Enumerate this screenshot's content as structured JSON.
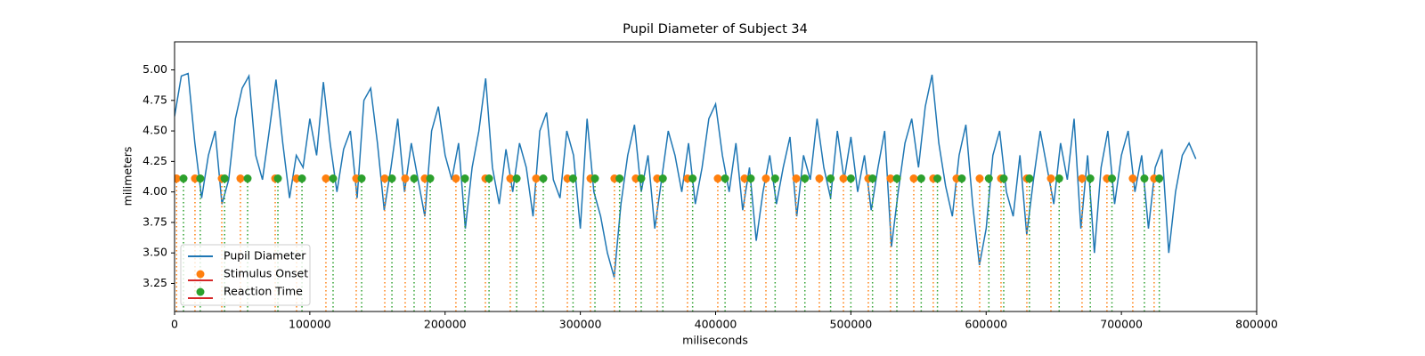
{
  "chart_data": {
    "type": "line",
    "title": "Pupil Diameter of Subject 34",
    "x_label": "miliseconds",
    "y_label": "milimeters",
    "xlim": [
      0,
      800000
    ],
    "ylim": [
      3.02,
      5.23
    ],
    "xticks": [
      0,
      100000,
      200000,
      300000,
      400000,
      500000,
      600000,
      700000,
      800000
    ],
    "yticks": [
      3.25,
      {
        "value": 3.5,
        "label": "3.50"
      },
      3.75,
      {
        "value": 4,
        "label": "4.00"
      },
      4.25,
      {
        "value": 4.5,
        "label": "4.50"
      },
      4.75,
      {
        "value": 5,
        "label": "5.00"
      }
    ],
    "legend": "lower left",
    "baseline_color": "#d62728",
    "series": [
      {
        "name": "Pupil Diameter",
        "style": "line",
        "color": "#1f77b4",
        "x": [
          0,
          5000,
          10000,
          15000,
          20000,
          25000,
          30000,
          35000,
          40000,
          45000,
          50000,
          55000,
          60000,
          65000,
          70000,
          75000,
          80000,
          85000,
          90000,
          95000,
          100000,
          105000,
          110000,
          115000,
          120000,
          125000,
          130000,
          135000,
          140000,
          145000,
          150000,
          155000,
          160000,
          165000,
          170000,
          175000,
          180000,
          185000,
          190000,
          195000,
          200000,
          205000,
          210000,
          215000,
          220000,
          225000,
          230000,
          235000,
          240000,
          245000,
          250000,
          255000,
          260000,
          265000,
          270000,
          275000,
          280000,
          285000,
          290000,
          295000,
          300000,
          305000,
          310000,
          315000,
          320000,
          325000,
          330000,
          335000,
          340000,
          345000,
          350000,
          355000,
          360000,
          365000,
          370000,
          375000,
          380000,
          385000,
          390000,
          395000,
          400000,
          405000,
          410000,
          415000,
          420000,
          425000,
          430000,
          435000,
          440000,
          445000,
          450000,
          455000,
          460000,
          465000,
          470000,
          475000,
          480000,
          485000,
          490000,
          495000,
          500000,
          505000,
          510000,
          515000,
          520000,
          525000,
          530000,
          535000,
          540000,
          545000,
          550000,
          555000,
          560000,
          565000,
          570000,
          575000,
          580000,
          585000,
          590000,
          595000,
          600000,
          605000,
          610000,
          615000,
          620000,
          625000,
          630000,
          635000,
          640000,
          645000,
          650000,
          655000,
          660000,
          665000,
          670000,
          675000,
          680000,
          685000,
          690000,
          695000,
          700000,
          705000,
          710000,
          715000,
          720000,
          725000,
          730000,
          735000,
          740000,
          745000,
          750000,
          755000
        ],
        "values": [
          4.62,
          4.95,
          4.97,
          4.4,
          3.95,
          4.3,
          4.5,
          3.9,
          4.1,
          4.6,
          4.85,
          4.95,
          4.3,
          4.1,
          4.5,
          4.92,
          4.4,
          3.95,
          4.3,
          4.2,
          4.6,
          4.3,
          4.9,
          4.4,
          4.0,
          4.35,
          4.5,
          3.95,
          4.75,
          4.85,
          4.4,
          3.85,
          4.2,
          4.6,
          4.0,
          4.4,
          4.1,
          3.8,
          4.5,
          4.7,
          4.3,
          4.1,
          4.4,
          3.7,
          4.2,
          4.5,
          4.93,
          4.2,
          3.9,
          4.35,
          4.0,
          4.4,
          4.2,
          3.8,
          4.5,
          4.65,
          4.1,
          3.95,
          4.5,
          4.3,
          3.7,
          4.6,
          4.0,
          3.8,
          3.5,
          3.3,
          3.9,
          4.3,
          4.55,
          4.0,
          4.3,
          3.7,
          4.1,
          4.5,
          4.3,
          4.0,
          4.4,
          3.9,
          4.2,
          4.6,
          4.72,
          4.3,
          4.0,
          4.4,
          3.85,
          4.2,
          3.6,
          4.0,
          4.3,
          3.9,
          4.2,
          4.45,
          3.8,
          4.3,
          4.1,
          4.6,
          4.2,
          3.95,
          4.5,
          4.1,
          4.45,
          4.0,
          4.3,
          3.85,
          4.2,
          4.5,
          3.55,
          4.0,
          4.4,
          4.6,
          4.2,
          4.7,
          4.96,
          4.4,
          4.05,
          3.8,
          4.3,
          4.55,
          3.9,
          3.4,
          3.7,
          4.3,
          4.5,
          4.0,
          3.8,
          4.3,
          3.65,
          4.1,
          4.5,
          4.2,
          3.9,
          4.4,
          4.1,
          4.6,
          3.7,
          4.3,
          3.5,
          4.2,
          4.5,
          3.9,
          4.3,
          4.5,
          4.0,
          4.3,
          3.7,
          4.2,
          4.35,
          3.5,
          4.0,
          4.3,
          4.4,
          4.27
        ]
      },
      {
        "name": "Stimulus Onset",
        "style": "stem",
        "color": "#ff7f0e",
        "x": [
          1500,
          15100,
          34900,
          48700,
          74400,
          90200,
          111900,
          134300,
          155400,
          170500,
          185000,
          208000,
          229800,
          248200,
          267300,
          290400,
          307500,
          325200,
          341000,
          356800,
          379200,
          401600,
          421400,
          437200,
          459600,
          476700,
          494500,
          512900,
          529300,
          546500,
          560900,
          578100,
          595200,
          611000,
          630100,
          647900,
          670900,
          689300,
          708400,
          724200
        ],
        "values": [
          4.11,
          4.11,
          4.11,
          4.11,
          4.11,
          4.11,
          4.11,
          4.11,
          4.11,
          4.11,
          4.11,
          4.11,
          4.11,
          4.11,
          4.11,
          4.11,
          4.11,
          4.11,
          4.11,
          4.11,
          4.11,
          4.11,
          4.11,
          4.11,
          4.11,
          4.11,
          4.11,
          4.11,
          4.11,
          4.11,
          4.11,
          4.11,
          4.11,
          4.11,
          4.11,
          4.11,
          4.11,
          4.11,
          4.11,
          4.11
        ]
      },
      {
        "name": "Reaction Time",
        "style": "stem",
        "color": "#2ca02c",
        "x": [
          6600,
          19000,
          37000,
          54000,
          76400,
          94200,
          117200,
          138300,
          160700,
          177100,
          189000,
          214700,
          232500,
          252900,
          272600,
          294600,
          310800,
          329000,
          345000,
          361000,
          383000,
          407000,
          426000,
          444000,
          466000,
          485000,
          500000,
          516000,
          534000,
          552000,
          564000,
          582000,
          602000,
          613000,
          632000,
          654000,
          677000,
          693000,
          717000,
          728000
        ],
        "values": [
          4.11,
          4.11,
          4.11,
          4.11,
          4.11,
          4.11,
          4.11,
          4.11,
          4.11,
          4.11,
          4.11,
          4.11,
          4.11,
          4.11,
          4.11,
          4.11,
          4.11,
          4.11,
          4.11,
          4.11,
          4.11,
          4.11,
          4.11,
          4.11,
          4.11,
          4.11,
          4.11,
          4.11,
          4.11,
          4.11,
          4.11,
          4.11,
          4.11,
          4.11,
          4.11,
          4.11,
          4.11,
          4.11,
          4.11,
          4.11
        ]
      }
    ]
  }
}
